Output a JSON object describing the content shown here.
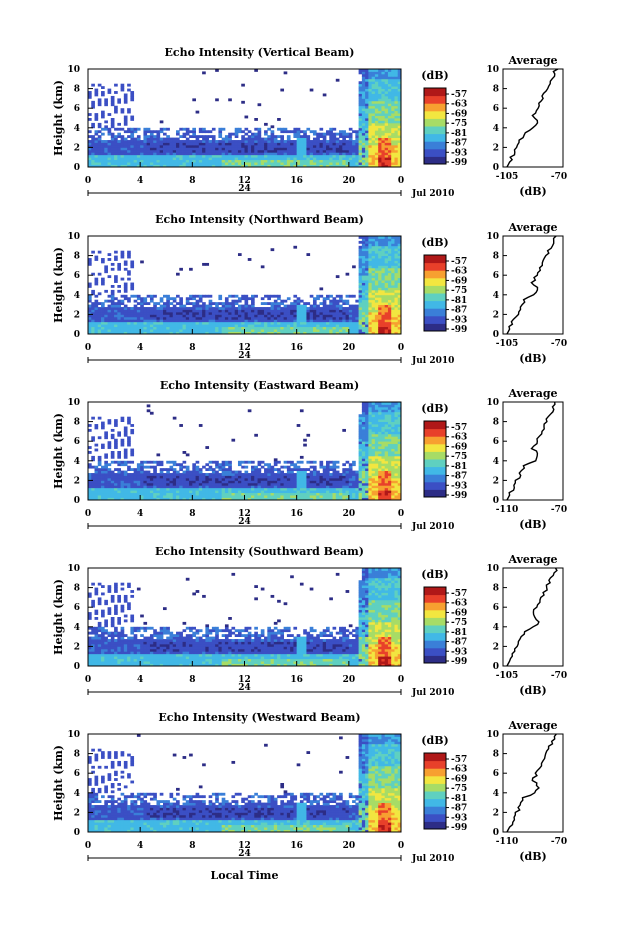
{
  "figure": {
    "x_axis_label": "Local Time",
    "y_axis_label": "Height (km)",
    "colorbar_unit": "(dB)",
    "colorbar_ticks": [
      -57,
      -63,
      -69,
      -75,
      -81,
      -87,
      -93,
      -99
    ],
    "avg_title": "Average",
    "avg_xlabel": "(dB)",
    "date_label": "Jul 2010",
    "mid_day_label": "24",
    "x_ticks": [
      "0",
      "4",
      "8",
      "12",
      "16",
      "20",
      "0"
    ],
    "y_ticks": [
      "0",
      "2",
      "4",
      "6",
      "8",
      "10"
    ]
  },
  "chart_data": [
    {
      "type": "heatmap",
      "title": "Echo Intensity (Vertical Beam)",
      "beam": "vertical",
      "avg_xticks": [
        "-105",
        "-70"
      ],
      "avg_xlim": [
        -105,
        -70
      ]
    },
    {
      "type": "heatmap",
      "title": "Echo Intensity (Northward Beam)",
      "beam": "north",
      "avg_xticks": [
        "-105",
        "-70"
      ],
      "avg_xlim": [
        -105,
        -70
      ]
    },
    {
      "type": "heatmap",
      "title": "Echo Intensity (Eastward Beam)",
      "beam": "east",
      "avg_xticks": [
        "-110",
        "-70"
      ],
      "avg_xlim": [
        -110,
        -70
      ]
    },
    {
      "type": "heatmap",
      "title": "Echo Intensity (Southward Beam)",
      "beam": "south",
      "avg_xticks": [
        "-105",
        "-70"
      ],
      "avg_xlim": [
        -105,
        -70
      ]
    },
    {
      "type": "heatmap",
      "title": "Echo Intensity (Westward Beam)",
      "beam": "west",
      "avg_xticks": [
        "-110",
        "-70"
      ],
      "avg_xlim": [
        -110,
        -70
      ]
    }
  ],
  "colors": {
    "colormap": [
      "#2d2d86",
      "#3b4fc4",
      "#3a7fd8",
      "#41b8e6",
      "#5fd0c0",
      "#a7dc66",
      "#f2e640",
      "#f7a030",
      "#e8402a",
      "#b01818"
    ]
  }
}
